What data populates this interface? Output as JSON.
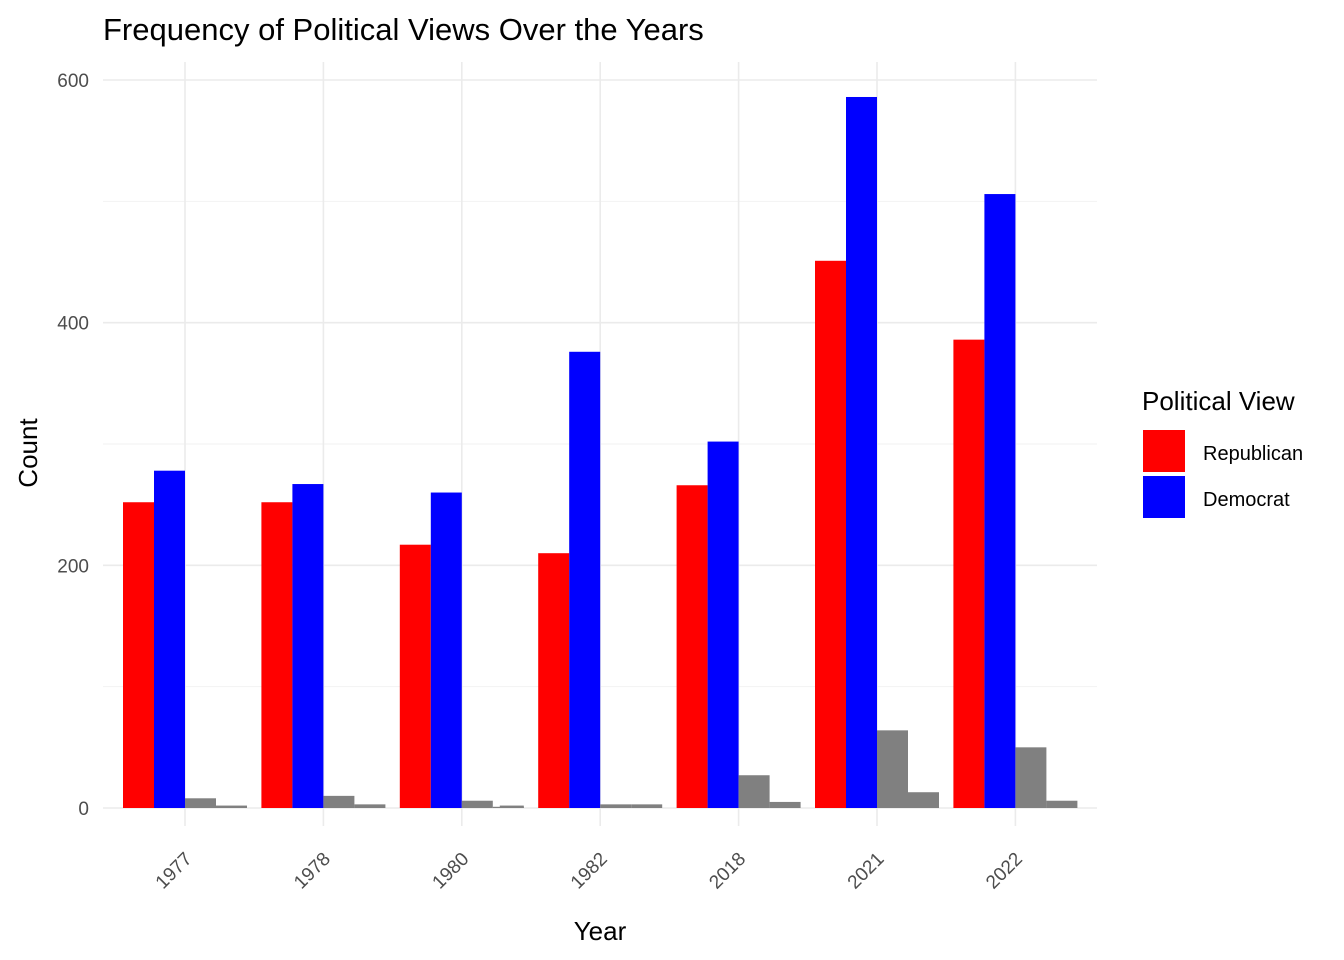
{
  "chart_data": {
    "type": "bar",
    "title": "Frequency of Political Views Over the Years",
    "xlabel": "Year",
    "ylabel": "Count",
    "categories": [
      "1977",
      "1978",
      "1980",
      "1982",
      "2018",
      "2021",
      "2022"
    ],
    "ylim": [
      0,
      600
    ],
    "yticks": [
      0,
      200,
      400,
      600
    ],
    "grid": true,
    "legend": {
      "title": "Political View",
      "placement": "right",
      "entries": [
        {
          "label": "Republican",
          "color": "#ff0000"
        },
        {
          "label": "Democrat",
          "color": "#0000ff"
        }
      ]
    },
    "series": [
      {
        "name": "Republican",
        "color": "#ff0000",
        "values": [
          252,
          252,
          217,
          210,
          266,
          451,
          386
        ]
      },
      {
        "name": "Democrat",
        "color": "#0000ff",
        "values": [
          278,
          267,
          260,
          376,
          302,
          586,
          506
        ]
      },
      {
        "color": "#808080",
        "values": [
          8,
          10,
          6,
          3,
          27,
          64,
          50
        ]
      },
      {
        "color": "#808080",
        "values": [
          2,
          3,
          1,
          3,
          5,
          13,
          6
        ]
      }
    ],
    "extra_bars": [
      {
        "category": "1980",
        "value": 2,
        "color": "#808080"
      }
    ]
  }
}
